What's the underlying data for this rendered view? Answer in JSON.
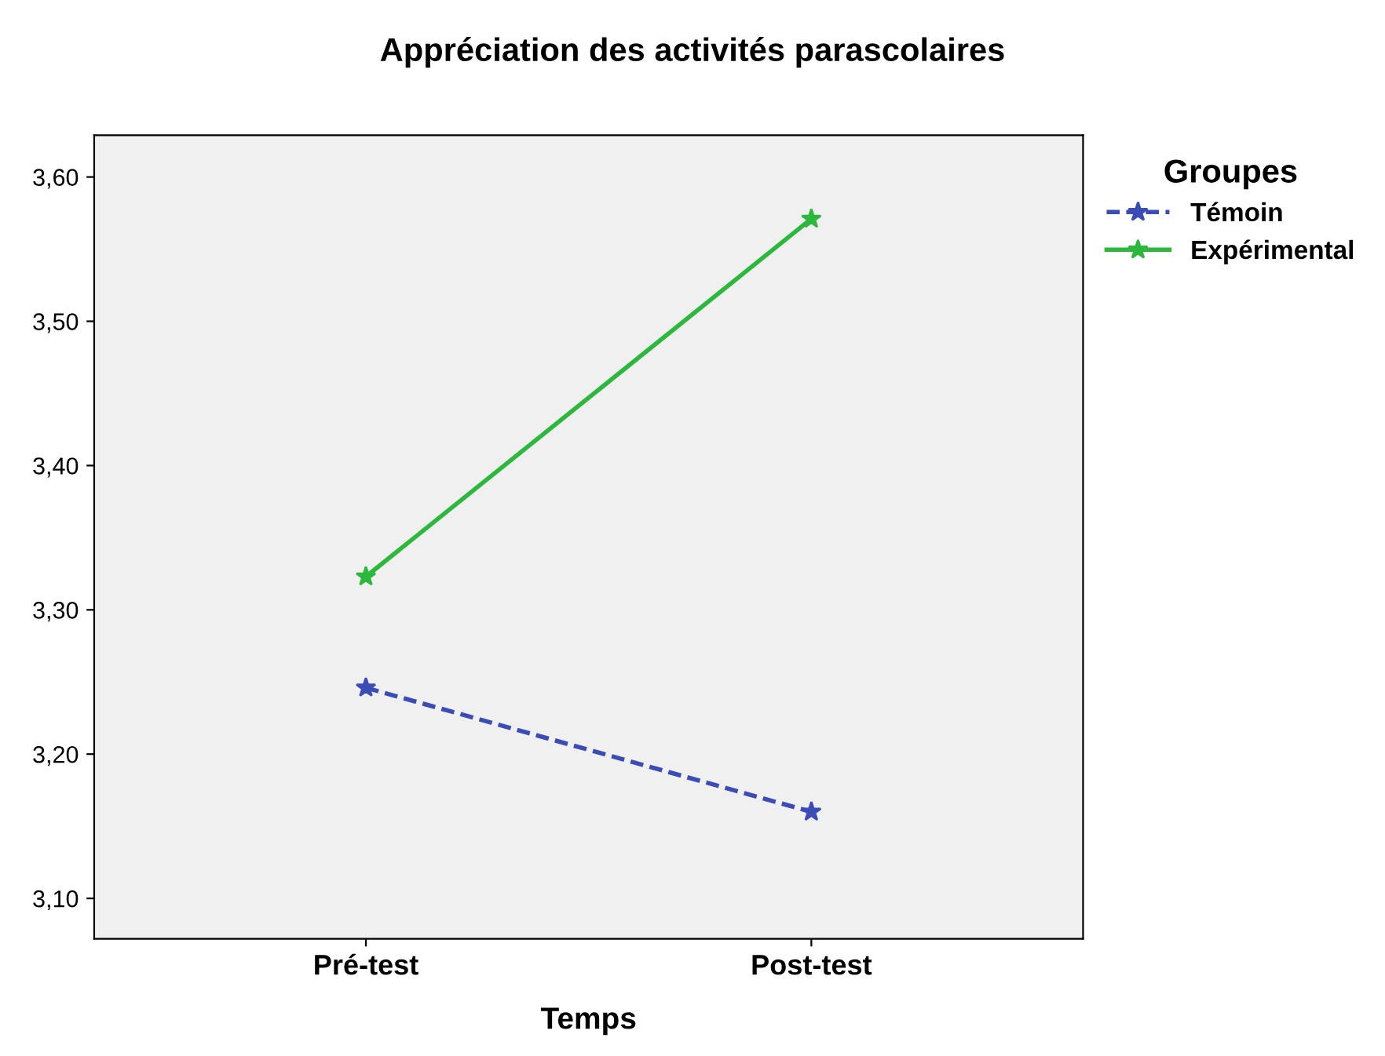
{
  "chart_data": {
    "type": "line",
    "title": "Appréciation des activités parascolaires",
    "xlabel": "Temps",
    "legend_title": "Groupes",
    "categories": [
      "Pré-test",
      "Post-test"
    ],
    "series": [
      {
        "name": "Témoin",
        "color": "#3b4cb4",
        "values": [
          3.246,
          3.16
        ],
        "line_style": "dashed"
      },
      {
        "name": "Expérimental",
        "color": "#2db83d",
        "values": [
          3.323,
          3.571
        ],
        "line_style": "solid"
      }
    ],
    "marker": "star",
    "ylim": [
      3.072,
      3.629
    ],
    "yticks": [
      {
        "value": 3.1,
        "label": "3,10"
      },
      {
        "value": 3.2,
        "label": "3,20"
      },
      {
        "value": 3.3,
        "label": "3,30"
      },
      {
        "value": 3.4,
        "label": "3,40"
      },
      {
        "value": 3.5,
        "label": "3,50"
      },
      {
        "value": 3.6,
        "label": "3,60"
      }
    ],
    "grid": false,
    "legend": "top right"
  }
}
